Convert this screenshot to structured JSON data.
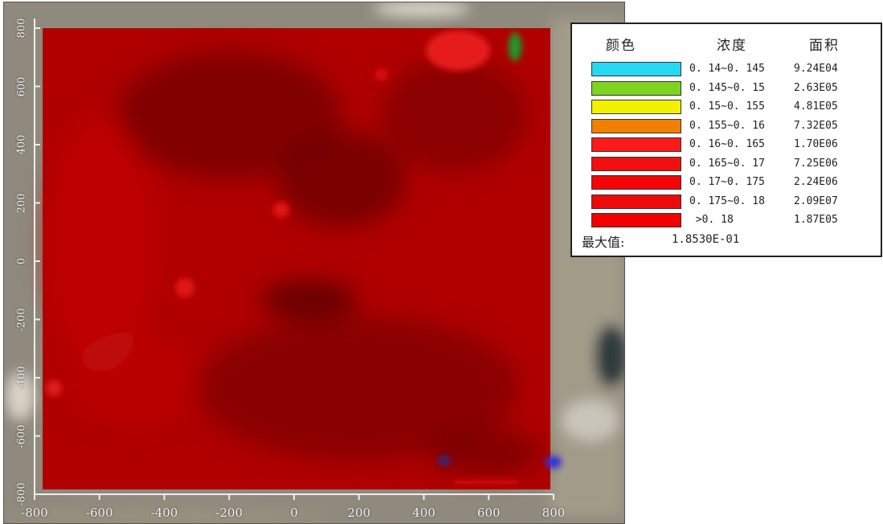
{
  "map": {
    "x_ticks": [
      "-800",
      "-600",
      "-400",
      "-200",
      "0",
      "200",
      "400",
      "600",
      "800"
    ],
    "y_ticks": [
      "800",
      "600",
      "400",
      "200",
      "0",
      "-200",
      "-400",
      "-600",
      "-800"
    ],
    "x_range": [
      -800,
      800
    ],
    "y_range": [
      -800,
      800
    ],
    "plume_color": "#b00000",
    "satellite_color": "#8f8a7d"
  },
  "legend": {
    "col_color": "颜色",
    "col_concentration": "浓度",
    "col_area": "面积",
    "rows": [
      {
        "color": "#28d8f2",
        "range": "0. 14~0. 145",
        "area": "9.24E04"
      },
      {
        "color": "#7ed321",
        "range": "0. 145~0. 15",
        "area": "2.63E05"
      },
      {
        "color": "#f2f200",
        "range": "0. 15~0. 155",
        "area": "4.81E05"
      },
      {
        "color": "#f28000",
        "range": "0. 155~0. 16",
        "area": "7.32E05"
      },
      {
        "color": "#ff1a1a",
        "range": "0. 16~0. 165",
        "area": "1.70E06"
      },
      {
        "color": "#f01010",
        "range": "0. 165~0. 17",
        "area": "7.25E06"
      },
      {
        "color": "#f50505",
        "range": "0. 17~0. 175",
        "area": "2.24E06"
      },
      {
        "color": "#ee0a0a",
        "range": "0. 175~0. 18",
        "area": "2.09E07"
      },
      {
        "color": "#f20000",
        "range": " >0. 18",
        "area": "1.87E05"
      }
    ],
    "max_label": "最大值:",
    "max_value": "1.8530E-01"
  }
}
